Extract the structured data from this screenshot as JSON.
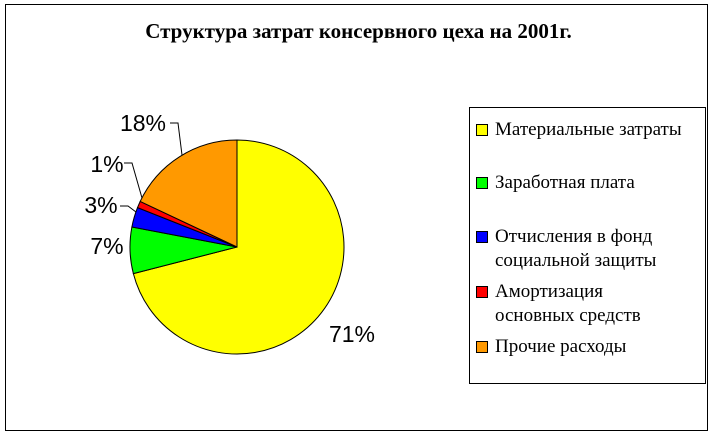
{
  "chart_data": {
    "type": "pie",
    "title": "Структура затрат консервного цеха на 2001г.",
    "legend_position": "right",
    "slices": [
      {
        "name": "Материальные затраты",
        "value": 71,
        "label": "71%",
        "color": "#ffff00"
      },
      {
        "name": "Заработная плата",
        "value": 7,
        "label": "7%",
        "color": "#00ff00"
      },
      {
        "name": "Отчисления в фонд социальной защиты",
        "value": 3,
        "label": "3%",
        "color": "#0000ff"
      },
      {
        "name": "Амортизация основных средств",
        "value": 1,
        "label": "1%",
        "color": "#ff0000"
      },
      {
        "name": "Прочие расходы",
        "value": 18,
        "label": "18%",
        "color": "#ff9900"
      }
    ]
  },
  "legend_labels": [
    "Материальные затраты",
    "Заработная плата",
    "Отчисления в фонд\nсоциальной защиты",
    "Амортизация\nосновных средств",
    "Прочие расходы"
  ]
}
